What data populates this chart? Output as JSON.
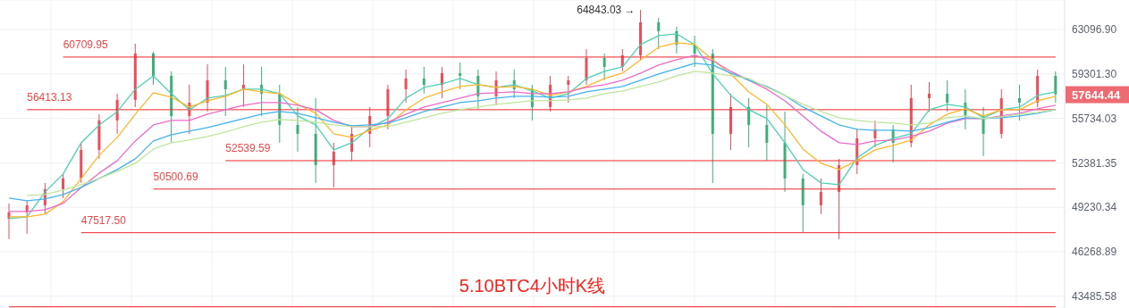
{
  "chart_data": {
    "type": "candlestick",
    "title": "5.10BTC4小时K线",
    "categories": [
      null,
      null,
      null,
      null,
      null,
      null,
      null,
      null,
      null,
      null,
      null,
      null,
      null,
      null,
      null,
      null,
      null,
      null,
      null,
      null,
      null,
      null,
      null,
      null,
      null,
      null,
      null,
      null,
      null,
      null,
      null,
      null,
      null,
      null,
      null,
      null,
      null,
      null,
      null,
      null,
      null,
      null,
      null,
      null,
      null,
      null,
      null,
      null,
      null,
      null,
      null,
      null,
      null,
      null,
      null,
      null,
      null,
      null,
      null
    ],
    "ohlc": [
      [
        48462,
        49498,
        47094,
        48886
      ],
      [
        48886,
        49683,
        47447,
        49375
      ],
      [
        49375,
        50935,
        48764,
        50493
      ],
      [
        50493,
        51573,
        49869,
        51253
      ],
      [
        51253,
        53869,
        50935,
        53336
      ],
      [
        53336,
        56059,
        52676,
        55572
      ],
      [
        55572,
        57687,
        54544,
        57186
      ],
      [
        57186,
        61852,
        56620,
        61011
      ],
      [
        61011,
        61163,
        58410,
        59141
      ],
      [
        59141,
        59511,
        53869,
        55919
      ],
      [
        55919,
        58410,
        54544,
        56973
      ],
      [
        56973,
        60106,
        56268,
        58774
      ],
      [
        58774,
        59882,
        55919,
        58047
      ],
      [
        58047,
        60106,
        56620,
        58410
      ],
      [
        58410,
        59882,
        55919,
        57687
      ],
      [
        57687,
        58410,
        53869,
        55227
      ],
      [
        55227,
        56620,
        53203,
        54544
      ],
      [
        54544,
        57329,
        50935,
        52219
      ],
      [
        52219,
        53869,
        50619,
        53203
      ],
      [
        53203,
        55227,
        52545,
        54544
      ],
      [
        54544,
        56620,
        53535,
        55919
      ],
      [
        55919,
        58410,
        54885,
        58047
      ],
      [
        58047,
        59659,
        56973,
        58921
      ],
      [
        58921,
        59882,
        57687,
        58410
      ],
      [
        58410,
        59882,
        57329,
        59363
      ],
      [
        59363,
        60256,
        58047,
        59141
      ],
      [
        59141,
        59659,
        56479,
        57472
      ],
      [
        57472,
        59511,
        56761,
        58774
      ],
      [
        58774,
        59659,
        57329,
        58047
      ],
      [
        58047,
        58410,
        55572,
        56620
      ],
      [
        56620,
        59141,
        56268,
        58410
      ],
      [
        58410,
        59141,
        56973,
        58774
      ],
      [
        58774,
        61392,
        58410,
        60632
      ],
      [
        60632,
        61011,
        58774,
        59882
      ],
      [
        59882,
        61392,
        59511,
        60859
      ],
      [
        60859,
        64843.03,
        60406,
        63728
      ],
      [
        63728,
        64126,
        61392,
        62939
      ],
      [
        62939,
        63332,
        61011,
        61775
      ],
      [
        61775,
        62549,
        59882,
        61011
      ],
      [
        61011,
        61392,
        50935,
        54544
      ],
      [
        54544,
        57687,
        53336,
        56620
      ],
      [
        56620,
        57329,
        53535,
        55227
      ],
      [
        55227,
        56761,
        52545,
        53869
      ],
      [
        53869,
        56268,
        50305,
        51253
      ],
      [
        51253,
        51573,
        47565,
        49375
      ],
      [
        49375,
        51253,
        48764,
        50305
      ],
      [
        50305,
        52676,
        47094,
        52219
      ],
      [
        52219,
        54885,
        51573,
        54206
      ],
      [
        54206,
        55572,
        53535,
        54885
      ],
      [
        54885,
        55227,
        52415,
        53869
      ],
      [
        53869,
        58410,
        53535,
        57329
      ],
      [
        57329,
        58628,
        56268,
        57687
      ],
      [
        57687,
        58774,
        56268,
        56973
      ],
      [
        56973,
        58047,
        54885,
        55919
      ],
      [
        55919,
        56620,
        52873,
        54544
      ],
      [
        54544,
        58047,
        54206,
        57329
      ],
      [
        57329,
        58410,
        55572,
        56973
      ],
      [
        56973,
        59659,
        56620,
        59141
      ],
      [
        59141,
        59511,
        56973,
        57644.44
      ]
    ],
    "colors": [
      "#ec4d5b",
      "#ec4d5b",
      "#ec4d5b",
      "#ec4d5b",
      "#ec4d5b",
      "#ec4d5b",
      "#ec4d5b",
      "#ec4d5b",
      "#3fae78",
      "#3fae78",
      "#ec4d5b",
      "#ec4d5b",
      "#3fae78",
      "#ec4d5b",
      "#3fae78",
      "#3fae78",
      "#3fae78",
      "#3fae78",
      "#ec4d5b",
      "#ec4d5b",
      "#ec4d5b",
      "#ec4d5b",
      "#ec4d5b",
      "#3fae78",
      "#ec4d5b",
      "#3fae78",
      "#3fae78",
      "#ec4d5b",
      "#3fae78",
      "#3fae78",
      "#ec4d5b",
      "#ec4d5b",
      "#ec4d5b",
      "#3fae78",
      "#ec4d5b",
      "#ec4d5b",
      "#3fae78",
      "#3fae78",
      "#3fae78",
      "#3fae78",
      "#ec4d5b",
      "#3fae78",
      "#3fae78",
      "#3fae78",
      "#3fae78",
      "#ec4d5b",
      "#ec4d5b",
      "#ec4d5b",
      "#ec4d5b",
      "#3fae78",
      "#ec4d5b",
      "#ec4d5b",
      "#3fae78",
      "#3fae78",
      "#3fae78",
      "#ec4d5b",
      "#3fae78",
      "#ec4d5b",
      "#3fae78"
    ],
    "series": [
      {
        "type": "line",
        "color": "#4dd0b4",
        "values": [
          48462,
          48583,
          50305,
          51573,
          53869,
          55227,
          56268,
          58047,
          59141,
          57687,
          56409,
          57329,
          57544,
          58047,
          58047,
          57687,
          55919,
          55227,
          53336,
          53869,
          55022,
          55711,
          57329,
          58192,
          58483,
          58921,
          58410,
          58192,
          58410,
          57903,
          57329,
          57687,
          58921,
          59511,
          59882,
          61775,
          62549,
          62706,
          61775,
          59289,
          57544,
          56409,
          55711,
          53869,
          51895,
          50935,
          50809,
          52741,
          53669,
          54206,
          54544,
          56409,
          56832,
          56620,
          55780,
          56409,
          56620,
          57544,
          57831
        ]
      },
      {
        "type": "line",
        "color": "#ffb72b",
        "values": [
          48583,
          48583,
          48764,
          49621,
          51253,
          52939,
          54274,
          56059,
          57759,
          57401,
          56620,
          57115,
          57472,
          58047,
          57831,
          57687,
          56832,
          56129,
          54544,
          54274,
          54817,
          55227,
          56409,
          57329,
          57831,
          58264,
          58410,
          58192,
          58264,
          58047,
          57544,
          57831,
          58264,
          58921,
          59363,
          60482,
          61545,
          61929,
          61775,
          60482,
          59289,
          57831,
          56832,
          55227,
          53402,
          52349,
          51895,
          52545,
          53336,
          53669,
          54071,
          55227,
          56059,
          56479,
          55919,
          56409,
          56409,
          57115,
          57472
        ]
      },
      {
        "type": "line",
        "color": "#eb6bc8",
        "values": [
          48947,
          48947,
          49069,
          49498,
          50619,
          51637,
          52545,
          54004,
          55227,
          55572,
          55572,
          56059,
          56409,
          56761,
          56973,
          56973,
          56761,
          56409,
          55572,
          55090,
          55090,
          55434,
          56059,
          56620,
          56973,
          57329,
          57687,
          57759,
          57831,
          57687,
          57687,
          57831,
          58192,
          58410,
          58774,
          59363,
          60031,
          60482,
          60859,
          60406,
          59511,
          58774,
          58047,
          57115,
          55919,
          54749,
          53869,
          53735,
          54004,
          54071,
          54341,
          54749,
          55365,
          55711,
          55711,
          55919,
          56129,
          56479,
          56761
        ]
      },
      {
        "type": "line",
        "color": "#44b2ec",
        "values": [
          49869,
          49683,
          49807,
          50118,
          50619,
          51253,
          51895,
          52676,
          54004,
          54476,
          54749,
          55022,
          55365,
          55711,
          56059,
          56268,
          56129,
          55780,
          55434,
          55159,
          55227,
          55365,
          55780,
          56268,
          56620,
          56973,
          57115,
          57329,
          57472,
          57472,
          57401,
          57472,
          57831,
          58047,
          58264,
          58774,
          59289,
          59733,
          60181,
          60031,
          59363,
          58774,
          58264,
          57544,
          56620,
          55919,
          55227,
          54885,
          54817,
          54817,
          54749,
          55022,
          55434,
          55780,
          55711,
          55780,
          55919,
          56129,
          56409
        ]
      },
      {
        "type": "line",
        "color": "#bfe59b",
        "values": [
          null,
          50055,
          50118,
          50430,
          50809,
          51253,
          51766,
          52349,
          53402,
          53869,
          54071,
          54341,
          54680,
          55090,
          55434,
          55641,
          55572,
          55434,
          55227,
          55090,
          55090,
          55090,
          55434,
          55780,
          56129,
          56409,
          56620,
          56832,
          56973,
          57115,
          57115,
          57186,
          57329,
          57687,
          57903,
          58264,
          58628,
          59141,
          59511,
          59363,
          59141,
          58921,
          58192,
          57544,
          56832,
          56268,
          55780,
          55572,
          55434,
          55365,
          55227,
          55365,
          55780,
          55919,
          55711,
          55850,
          56059,
          56198,
          56409
        ]
      }
    ],
    "log": true,
    "ylim": [
      42780,
      65740
    ],
    "yticks": [
      43485.58,
      46268.89,
      49230.34,
      52381.35,
      55734.03,
      {
        "value": 59301.3,
        "label": "59301.30"
      },
      {
        "value": 63096.9,
        "label": "63096.90"
      }
    ],
    "grid": true,
    "tick_labels": "y",
    "ref_lines": [
      {
        "axis": "y",
        "value": 60709.95,
        "label": "60709.95",
        "color": "#f0262b"
      },
      {
        "axis": "y",
        "value": 56413.13,
        "label": "56413.13",
        "color": "#f0262b"
      },
      {
        "axis": "y",
        "value": 52539.59,
        "label": "52539.59",
        "color": "#f0262b"
      },
      {
        "axis": "y",
        "value": 50500.69,
        "label": "50500.69",
        "color": "#f0262b"
      },
      {
        "axis": "y",
        "value": 47517.5,
        "label": "47517.50",
        "color": "#f0262b"
      },
      {
        "axis": "y",
        "value": 42850,
        "label": null,
        "color": "#f0262b"
      }
    ],
    "annotations": [
      "64843.03 →",
      "57644.44"
    ]
  }
}
